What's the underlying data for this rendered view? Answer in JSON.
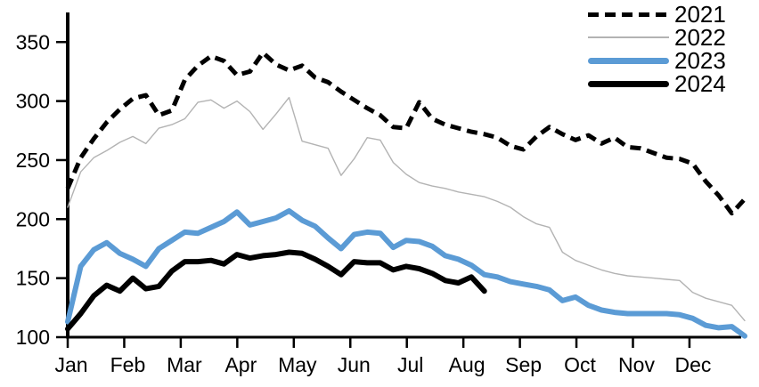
{
  "chart_data": {
    "type": "line",
    "title": "",
    "xlabel": "",
    "ylabel": "",
    "x_sampling": "weekly",
    "x_axis": {
      "months": [
        "Jan",
        "Feb",
        "Mar",
        "Apr",
        "May",
        "Jun",
        "Jul",
        "Aug",
        "Sep",
        "Oct",
        "Nov",
        "Dec"
      ]
    },
    "y_axis": {
      "min": 100,
      "max": 375,
      "ticks": [
        100,
        150,
        200,
        250,
        300,
        350
      ]
    },
    "grid": "off",
    "legend_position": "top-right",
    "series": [
      {
        "name": "2021",
        "style": "dashed",
        "color": "#000000",
        "width": 5,
        "values": [
          226,
          252,
          268,
          282,
          293,
          302,
          305,
          288,
          292,
          318,
          330,
          338,
          334,
          322,
          325,
          341,
          331,
          326,
          330,
          320,
          316,
          308,
          301,
          294,
          288,
          278,
          277,
          299,
          285,
          280,
          277,
          274,
          272,
          269,
          262,
          259,
          270,
          278,
          272,
          267,
          271,
          264,
          269,
          261,
          260,
          256,
          252,
          251,
          247,
          232,
          220,
          205,
          217
        ]
      },
      {
        "name": "2022",
        "style": "solid-thin",
        "color": "#b3b3b3",
        "width": 1.4,
        "values": [
          210,
          240,
          252,
          258,
          265,
          270,
          264,
          277,
          280,
          285,
          299,
          301,
          294,
          300,
          291,
          276,
          289,
          303,
          266,
          263,
          260,
          237,
          251,
          269,
          267,
          248,
          238,
          231,
          228,
          226,
          223,
          221,
          219,
          215,
          210,
          202,
          196,
          193,
          172,
          165,
          161,
          157,
          154,
          152,
          151,
          150,
          149,
          148,
          138,
          133,
          130,
          127,
          114
        ]
      },
      {
        "name": "2023",
        "style": "solid-thick",
        "color": "#5b9bd5",
        "width": 6,
        "values": [
          113,
          160,
          174,
          180,
          171,
          166,
          160,
          175,
          182,
          189,
          188,
          193,
          198,
          206,
          195,
          198,
          201,
          207,
          199,
          194,
          184,
          175,
          187,
          189,
          188,
          176,
          182,
          181,
          177,
          169,
          166,
          161,
          153,
          151,
          147,
          145,
          143,
          140,
          131,
          134,
          127,
          123,
          121,
          120,
          120,
          120,
          120,
          119,
          116,
          110,
          108,
          109,
          101
        ]
      },
      {
        "name": "2024",
        "style": "solid-thick",
        "color": "#000000",
        "width": 6,
        "values": [
          107,
          120,
          135,
          144,
          139,
          150,
          141,
          143,
          156,
          164,
          164,
          165,
          162,
          170,
          167,
          169,
          170,
          172,
          171,
          166,
          160,
          153,
          164,
          163,
          163,
          157,
          160,
          158,
          154,
          148,
          146,
          151,
          139
        ]
      }
    ]
  }
}
